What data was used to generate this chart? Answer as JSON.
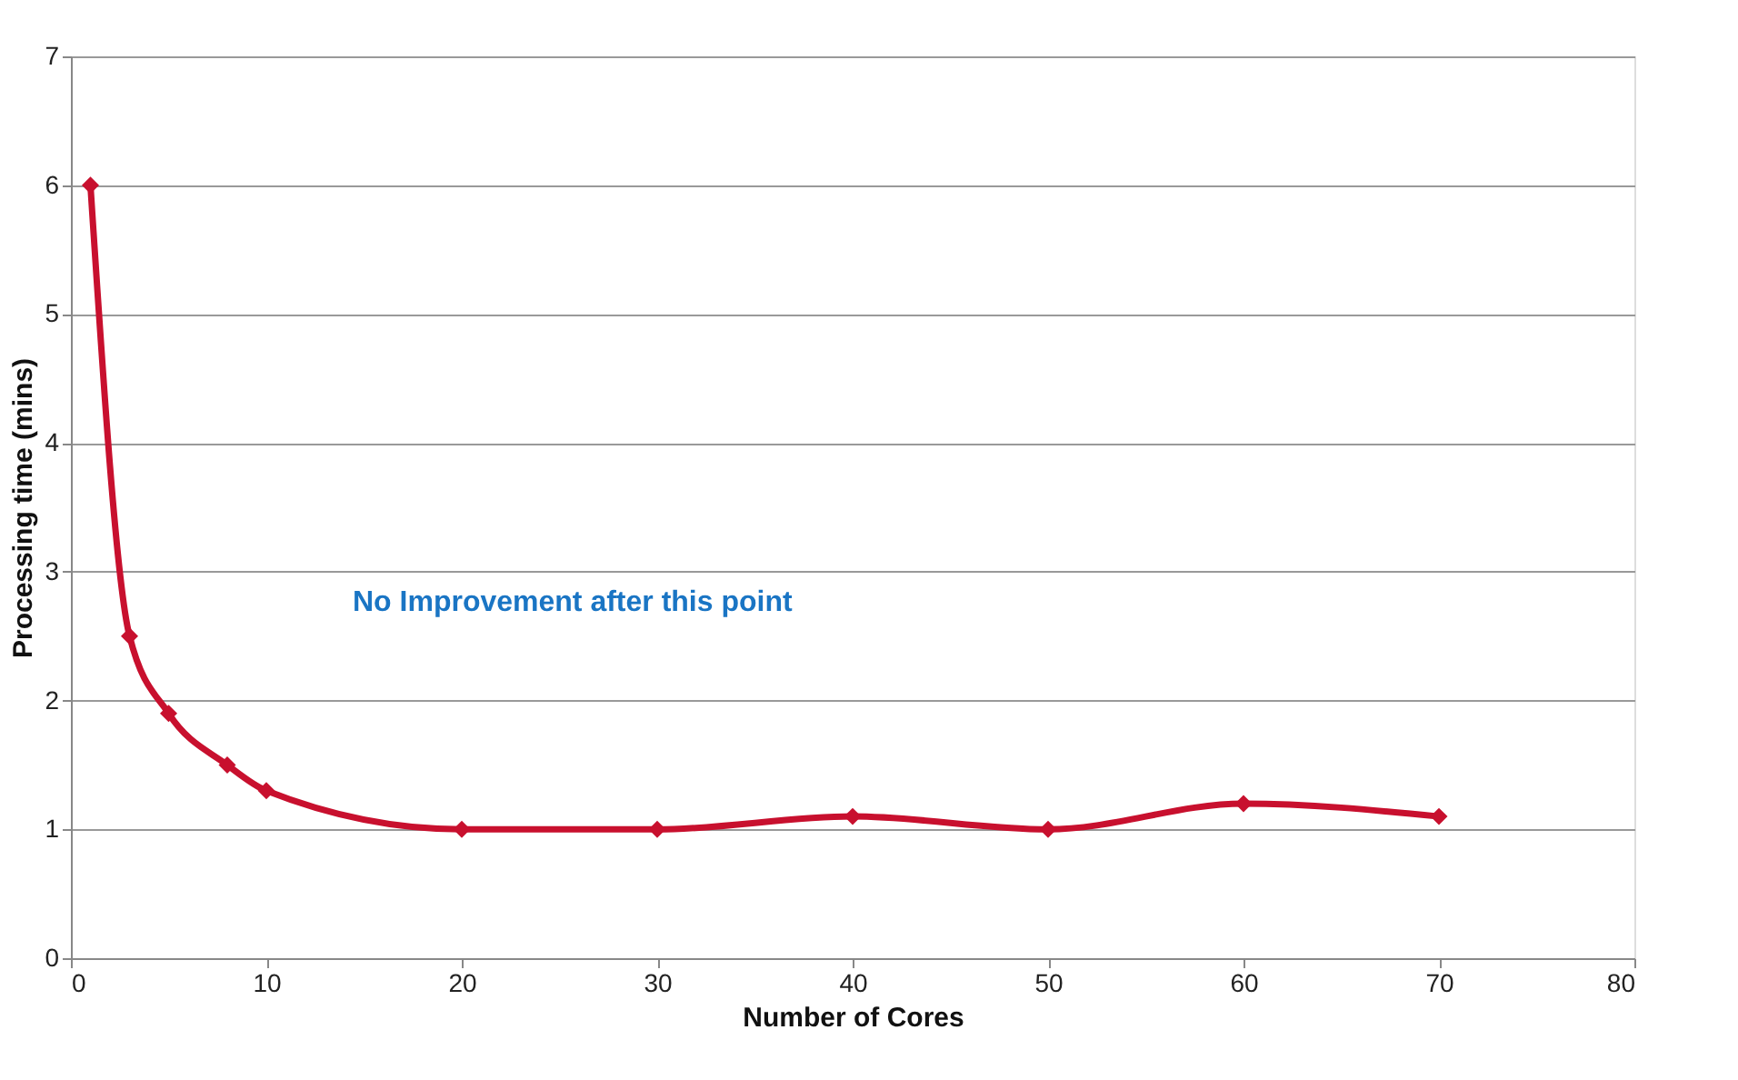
{
  "chart_data": {
    "type": "line",
    "xlabel": "Number of Cores",
    "ylabel": "Processing time (mins)",
    "x": [
      1,
      3,
      5,
      8,
      10,
      20,
      30,
      40,
      50,
      60,
      70
    ],
    "series": [
      {
        "color": "#c8102e",
        "values": [
          6,
          2.5,
          1.9,
          1.5,
          1.3,
          1.0,
          1.0,
          1.1,
          1.0,
          1.2,
          1.1
        ]
      }
    ],
    "xlim": [
      0,
      80
    ],
    "xticks": [
      0,
      10,
      20,
      30,
      40,
      50,
      60,
      70,
      80
    ],
    "ylim": [
      0,
      7
    ],
    "yticks": [
      0,
      1,
      2,
      3,
      4,
      5,
      6,
      7
    ],
    "grid": "y",
    "marker": "diamond",
    "line_style": "solid",
    "annotations": [
      "No Improvement after this point"
    ]
  }
}
